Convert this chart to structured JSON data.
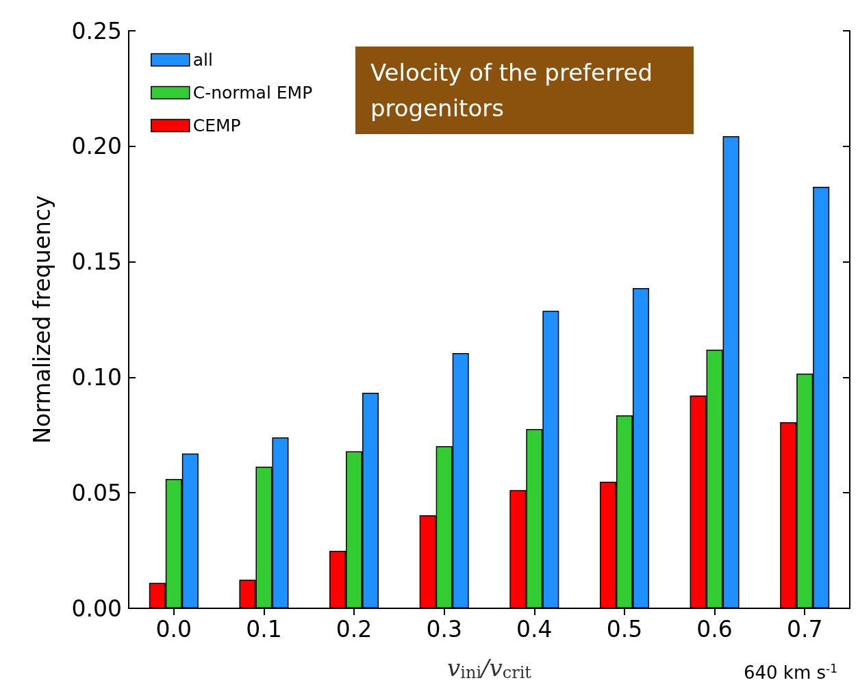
{
  "chart_data": {
    "type": "bar",
    "title": "Velocity of the preferred progenitors",
    "xlabel": "v$_{ini}$/v$_{crit}$",
    "ylabel": "Normalized frequency",
    "categories": [
      "0.0",
      "0.1",
      "0.2",
      "0.3",
      "0.4",
      "0.5",
      "0.6",
      "0.7"
    ],
    "series": [
      {
        "name": "CEMP",
        "color": "#ff0000",
        "values": [
          0.011,
          0.0124,
          0.0249,
          0.0403,
          0.0512,
          0.0548,
          0.0921,
          0.0806
        ]
      },
      {
        "name": "C-normal EMP",
        "color": "#33cc33",
        "values": [
          0.056,
          0.0613,
          0.068,
          0.0702,
          0.0776,
          0.0835,
          0.112,
          0.1016
        ]
      },
      {
        "name": "all",
        "color": "#1e90ff",
        "values": [
          0.067,
          0.074,
          0.0933,
          0.1105,
          0.1288,
          0.1386,
          0.2044,
          0.1825
        ]
      }
    ],
    "ylim": [
      0,
      0.25
    ],
    "yticks": [
      {
        "value": 0,
        "label": "0.00"
      },
      {
        "value": 0.05,
        "label": "0.05"
      },
      {
        "value": 0.1,
        "label": "0.10"
      },
      {
        "value": 0.15,
        "label": "0.15"
      },
      {
        "value": 0.2,
        "label": "0.20"
      },
      {
        "value": 0.25,
        "label": "0.25"
      }
    ],
    "grid": false,
    "legend": "top left",
    "annotations": [
      "640 km s$^{-1}$"
    ]
  }
}
